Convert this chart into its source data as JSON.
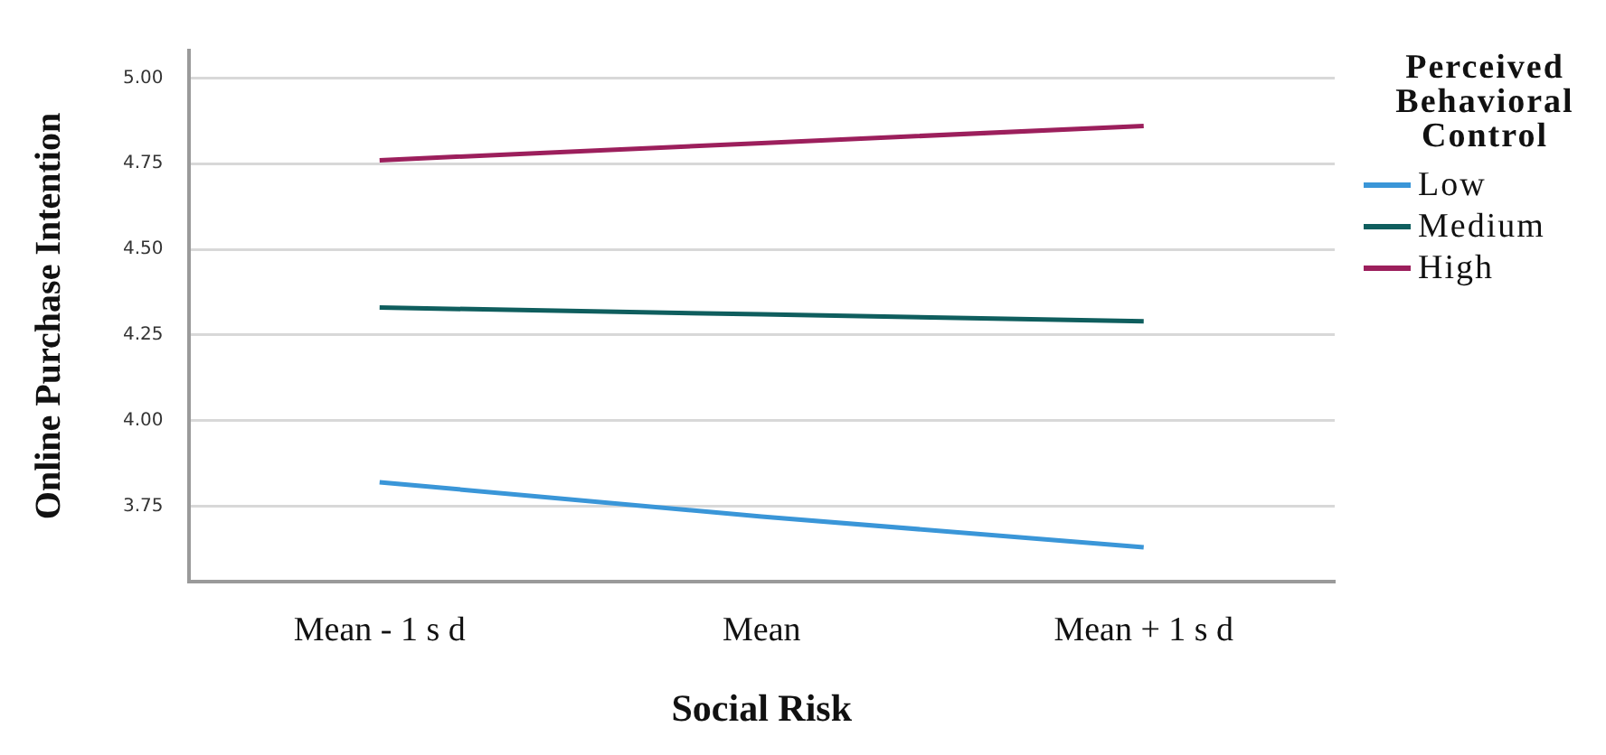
{
  "chart_data": {
    "type": "line",
    "xlabel": "Social Risk",
    "ylabel": "Online Purchase Intention",
    "legend_title": "Perceived Behavioral Control",
    "categories": [
      "Mean - 1 s d",
      "Mean",
      "Mean + 1 s d"
    ],
    "series": [
      {
        "name": "Low",
        "color": "#3a96d8",
        "values": [
          3.82,
          3.72,
          3.63
        ]
      },
      {
        "name": "Medium",
        "color": "#0f5e5e",
        "values": [
          4.33,
          4.31,
          4.29
        ]
      },
      {
        "name": "High",
        "color": "#9c1f5c",
        "values": [
          4.76,
          4.81,
          4.86
        ]
      }
    ],
    "ylim": [
      3.53,
      5.08
    ],
    "yticks": [
      {
        "value": 3.75,
        "label": "3.75"
      },
      {
        "value": 4,
        "label": "4.00"
      },
      {
        "value": 4.25,
        "label": "4.25"
      },
      {
        "value": 4.5,
        "label": "4.50"
      },
      {
        "value": 4.75,
        "label": "4.75"
      },
      {
        "value": 5,
        "label": "5.00"
      }
    ],
    "grid": "y",
    "legend": "top right",
    "marker": "none",
    "line_style": "solid"
  }
}
